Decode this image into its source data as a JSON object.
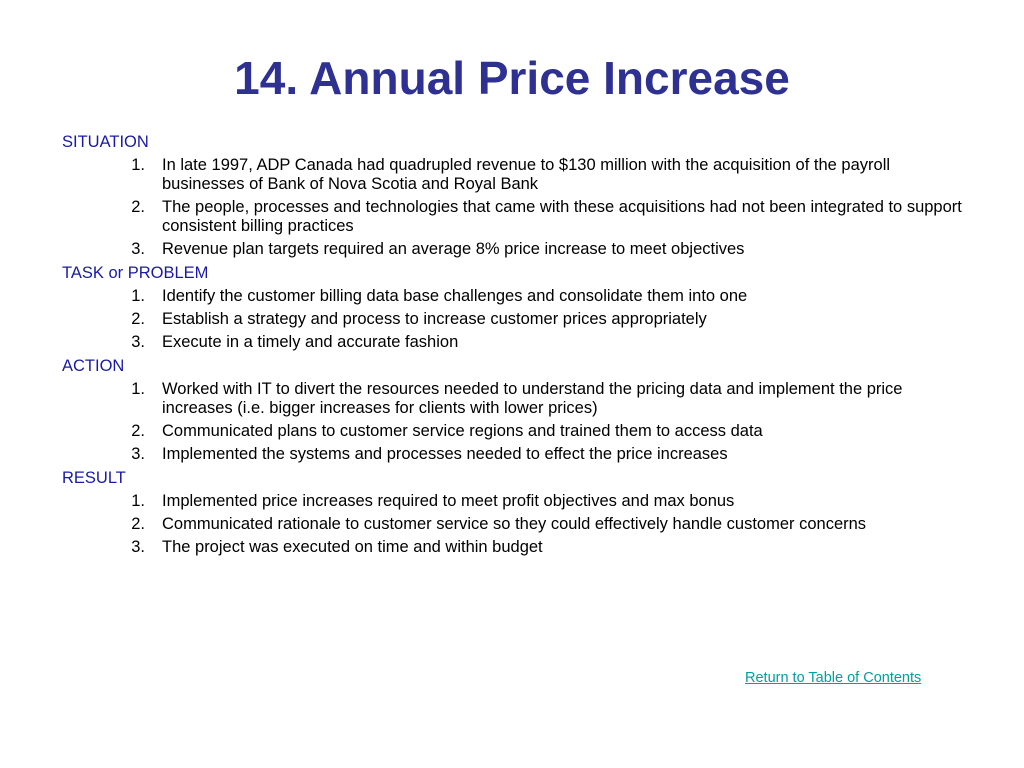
{
  "slide": {
    "title": "14. Annual Price Increase",
    "sections": [
      {
        "heading": "SITUATION",
        "items": [
          {
            "num": "1.",
            "text": "In late 1997, ADP Canada had quadrupled revenue to $130 million with the acquisition of the payroll businesses of Bank of Nova Scotia and Royal Bank"
          },
          {
            "num": "2.",
            "text": "The people, processes and technologies that came with these acquisitions had not been integrated to support consistent billing practices"
          },
          {
            "num": "3.",
            "text": "Revenue plan targets required an average 8% price increase to meet objectives"
          }
        ]
      },
      {
        "heading": "TASK or PROBLEM",
        "items": [
          {
            "num": "1.",
            "text": "Identify the customer billing data base challenges and consolidate them into one"
          },
          {
            "num": "2.",
            "text": "Establish a strategy and process to increase customer prices appropriately"
          },
          {
            "num": "3.",
            "text": "Execute in a timely and accurate fashion"
          }
        ]
      },
      {
        "heading": "ACTION",
        "items": [
          {
            "num": "1.",
            "text": "Worked with IT to divert the resources needed to understand the pricing data and implement the price increases (i.e. bigger increases for clients with lower prices)"
          },
          {
            "num": "2.",
            "text": "Communicated plans to customer service regions and trained them to access data"
          },
          {
            "num": "3.",
            "text": "Implemented the systems and processes needed to effect the price increases"
          }
        ]
      },
      {
        "heading": "RESULT",
        "items": [
          {
            "num": "1.",
            "text": "Implemented price increases required to meet profit objectives and max bonus"
          },
          {
            "num": "2.",
            "text": "Communicated rationale to customer service so they could effectively handle customer concerns"
          },
          {
            "num": "3.",
            "text": "The project was executed on time and within budget"
          }
        ]
      }
    ],
    "toc_link": "Return to Table of Contents"
  },
  "colors": {
    "title": "#2e3192",
    "heading": "#1a1aa6",
    "body_text": "#000000",
    "link": "#00a0a0",
    "background": "#ffffff"
  }
}
